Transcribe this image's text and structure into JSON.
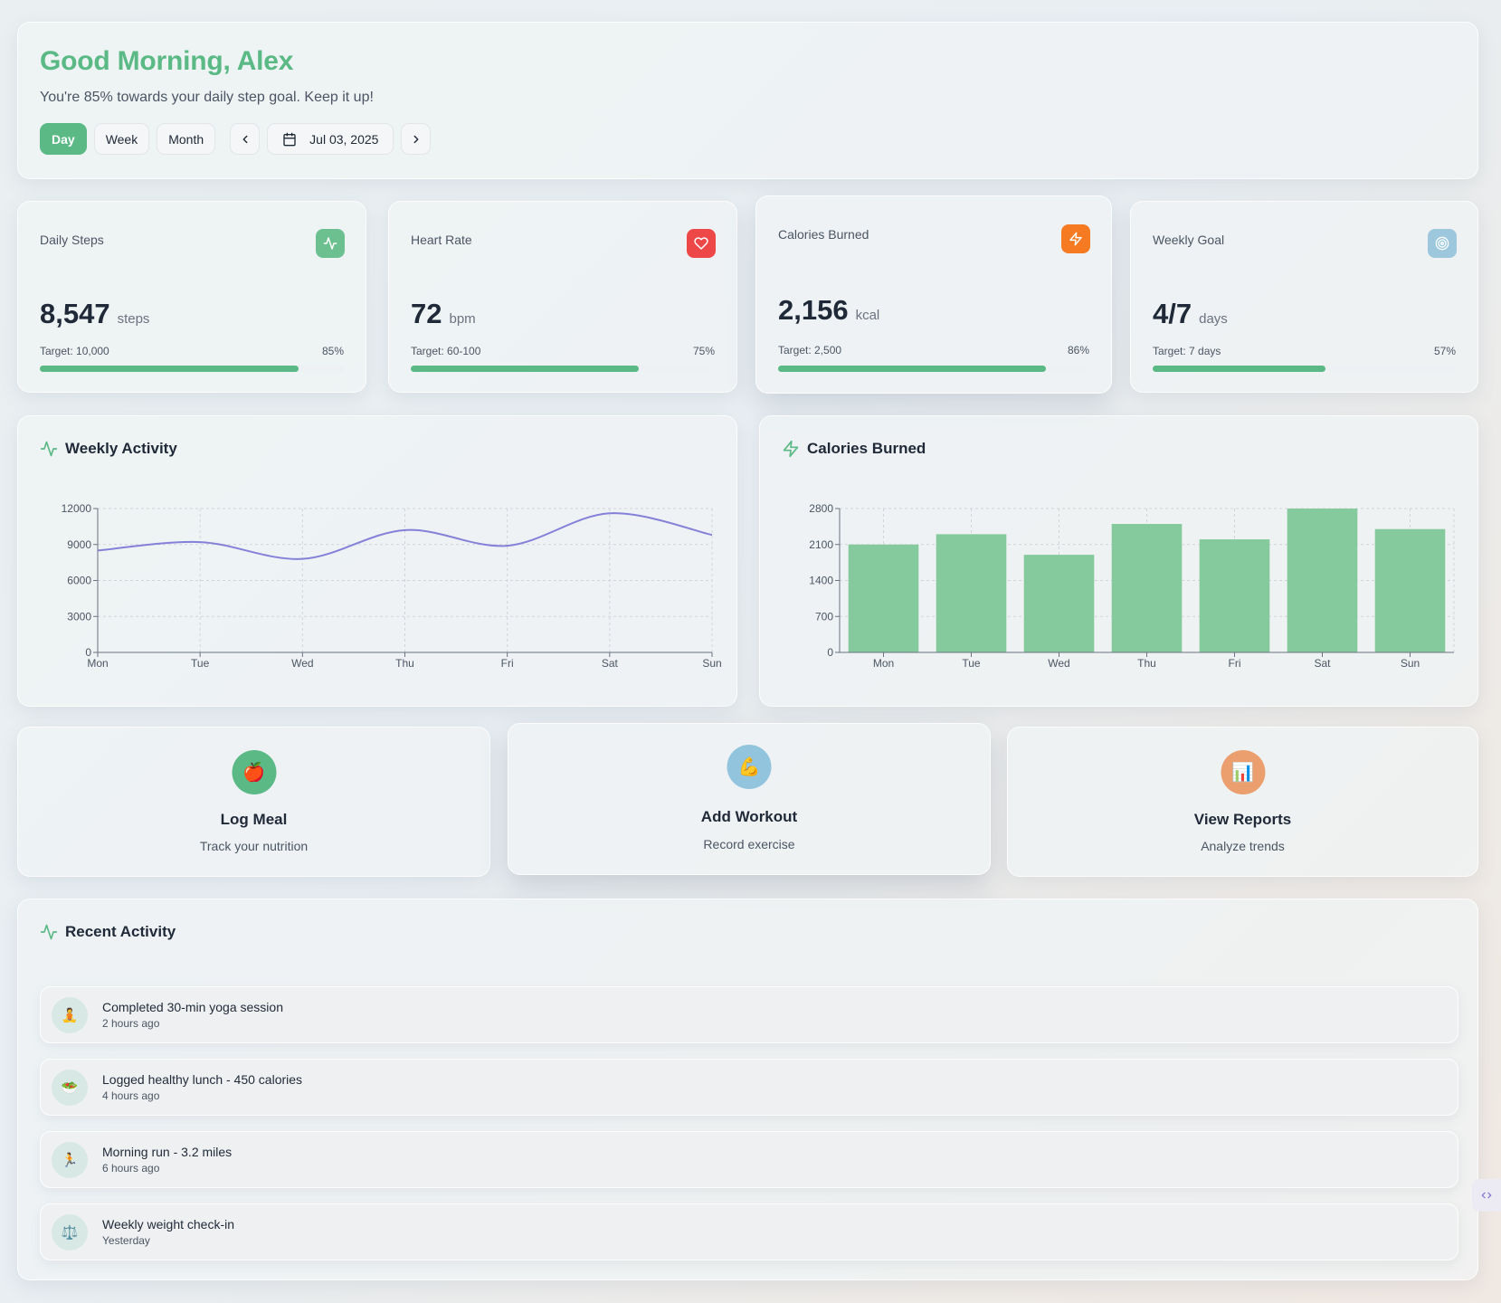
{
  "header": {
    "greeting": "Good Morning, Alex",
    "subtitle": "You're 85% towards your daily step goal. Keep it up!",
    "ranges": [
      "Day",
      "Week",
      "Month"
    ],
    "active_range": "Day",
    "date": "Jul 03, 2025"
  },
  "stats": [
    {
      "title": "Daily Steps",
      "value": "8,547",
      "unit": "steps",
      "target": "Target: 10,000",
      "percent_label": "85%",
      "progress": 0.85,
      "icon": "activity-icon",
      "color": "#5ab985"
    },
    {
      "title": "Heart Rate",
      "value": "72",
      "unit": "bpm",
      "target": "Target: 60-100",
      "percent_label": "75%",
      "progress": 0.75,
      "icon": "heart-icon",
      "color": "#ef4444"
    },
    {
      "title": "Calories Burned",
      "value": "2,156",
      "unit": "kcal",
      "target": "Target: 2,500",
      "percent_label": "86%",
      "progress": 0.86,
      "icon": "zap-icon",
      "color": "#f97316"
    },
    {
      "title": "Weekly Goal",
      "value": "4/7",
      "unit": "days",
      "target": "Target: 7 days",
      "percent_label": "57%",
      "progress": 0.57,
      "icon": "target-icon",
      "color": "#93c4dd"
    }
  ],
  "charts": {
    "activity_title": "Weekly Activity",
    "calories_title": "Calories Burned"
  },
  "chart_data": [
    {
      "type": "line",
      "title": "Weekly Activity",
      "categories": [
        "Mon",
        "Tue",
        "Wed",
        "Thu",
        "Fri",
        "Sat",
        "Sun"
      ],
      "values": [
        8500,
        9200,
        7800,
        10200,
        8900,
        11600,
        9800
      ],
      "y_ticks": [
        0,
        3000,
        6000,
        9000,
        12000
      ],
      "ylim": [
        0,
        12000
      ],
      "grid": true,
      "color": "#8580d8"
    },
    {
      "type": "bar",
      "title": "Calories Burned",
      "categories": [
        "Mon",
        "Tue",
        "Wed",
        "Thu",
        "Fri",
        "Sat",
        "Sun"
      ],
      "values": [
        2100,
        2300,
        1900,
        2500,
        2200,
        2800,
        2400
      ],
      "y_ticks": [
        0,
        700,
        1400,
        2100,
        2800
      ],
      "ylim": [
        0,
        2800
      ],
      "grid": true,
      "color": "#84ca9c"
    }
  ],
  "actions": [
    {
      "title": "Log Meal",
      "subtitle": "Track your nutrition",
      "icon": "apple-icon",
      "emoji": "🍎",
      "color": "#5ab985"
    },
    {
      "title": "Add Workout",
      "subtitle": "Record exercise",
      "icon": "muscle-icon",
      "emoji": "💪",
      "color": "#93c4dd"
    },
    {
      "title": "View Reports",
      "subtitle": "Analyze trends",
      "icon": "chart-icon",
      "emoji": "📊",
      "color": "#eb9e6e"
    }
  ],
  "recent": {
    "title": "Recent Activity",
    "items": [
      {
        "title": "Completed 30-min yoga session",
        "time": "2 hours ago",
        "icon": "yoga-icon",
        "emoji": "🧘"
      },
      {
        "title": "Logged healthy lunch - 450 calories",
        "time": "4 hours ago",
        "icon": "salad-icon",
        "emoji": "🥗"
      },
      {
        "title": "Morning run - 3.2 miles",
        "time": "6 hours ago",
        "icon": "runner-icon",
        "emoji": "🏃"
      },
      {
        "title": "Weekly weight check-in",
        "time": "Yesterday",
        "icon": "scale-icon",
        "emoji": "⚖️"
      }
    ]
  }
}
